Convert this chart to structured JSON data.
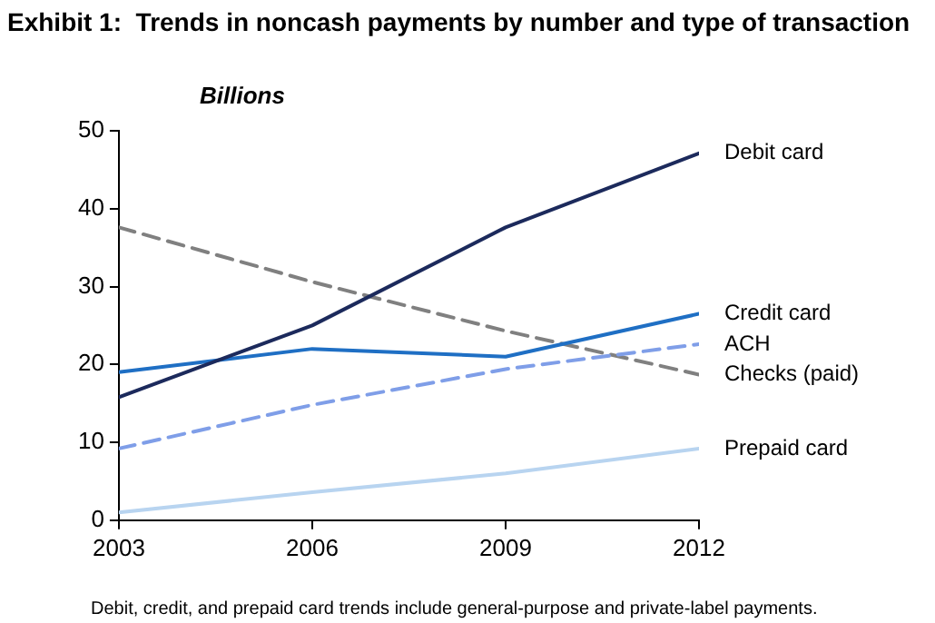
{
  "chart_data": {
    "type": "line",
    "title": "Exhibit 1:  Trends in noncash payments by number and type of transaction",
    "ylabel": "Billions",
    "x": [
      2003,
      2006,
      2009,
      2012
    ],
    "xlim": [
      2003,
      2012
    ],
    "xticks": [
      2003,
      2006,
      2009,
      2012
    ],
    "ylim": [
      0,
      50
    ],
    "yticks": [
      0,
      10,
      20,
      30,
      40,
      50
    ],
    "grid": false,
    "legend": false,
    "marker": "none",
    "series": [
      {
        "name": "Debit card",
        "color": "#1c2a5c",
        "values": [
          15.8,
          25,
          37.6,
          47.1
        ],
        "line_style": "solid"
      },
      {
        "name": "Credit card",
        "color": "#1f6fc4",
        "values": [
          19,
          22,
          21,
          26.5
        ],
        "line_style": "solid"
      },
      {
        "name": "ACH",
        "color": "#7f9ee8",
        "values": [
          9.2,
          14.8,
          19.4,
          22.6
        ],
        "line_style": "dashed"
      },
      {
        "name": "Checks (paid)",
        "color": "#808080",
        "values": [
          37.6,
          30.6,
          24.3,
          18.7
        ],
        "line_style": "dashed"
      },
      {
        "name": "Prepaid card",
        "color": "#b8d4f0",
        "values": [
          1,
          3.6,
          6,
          9.2
        ],
        "line_style": "solid"
      }
    ],
    "annotations": [
      "Debit, credit, and prepaid card trends include general-purpose and private-label payments."
    ]
  }
}
